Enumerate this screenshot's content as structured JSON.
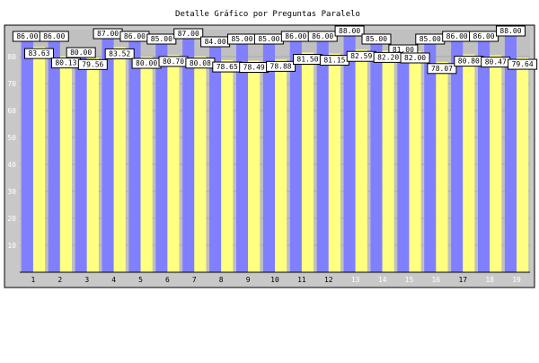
{
  "chart_data": {
    "type": "bar",
    "title": "Detalle Gráfico por Preguntas Paralelo",
    "xlabel": "",
    "ylabel": "",
    "ylim": [
      0,
      90
    ],
    "yticks": [
      10,
      20,
      30,
      40,
      50,
      60,
      70,
      80
    ],
    "grid": true,
    "legend": "none",
    "categories": [
      "1",
      "2",
      "3",
      "4",
      "5",
      "6",
      "7",
      "8",
      "9",
      "10",
      "11",
      "12",
      "13",
      "14",
      "15",
      "16",
      "17",
      "18",
      "19"
    ],
    "series": [
      {
        "color": "#8080ff",
        "values": [
          86.0,
          86.0,
          80.0,
          87.0,
          86.0,
          85.0,
          87.0,
          84.0,
          85.0,
          85.0,
          86.0,
          86.0,
          88.0,
          85.0,
          81.0,
          85.0,
          86.0,
          86.0,
          88.0
        ],
        "labels": [
          "86.00",
          "86.00",
          "80.00",
          "87.00",
          "86.00",
          "85.00",
          "87.00",
          "84.00",
          "85.00",
          "85.00",
          "86.00",
          "86.00",
          "88.00",
          "85.00",
          "81.00",
          "85.00",
          "86.00",
          "86.00",
          "88.00"
        ]
      },
      {
        "color": "#ffff80",
        "values": [
          83.63,
          80.13,
          79.56,
          83.52,
          80.0,
          80.7,
          80.08,
          78.65,
          78.49,
          78.88,
          81.5,
          81.15,
          82.59,
          82.2,
          82.0,
          78.07,
          80.8,
          80.47,
          79.64
        ],
        "labels": [
          "83.63",
          "80.13",
          "79.56",
          "83.52",
          "80.00",
          "80.70",
          "80.08",
          "78.65",
          "78.49",
          "78.88",
          "81.50",
          "81.15",
          "82.59",
          "82.20",
          "82.00",
          "78.07",
          "80.80",
          "80.47",
          "79.64"
        ]
      }
    ]
  },
  "colors": {
    "plot_bg": "#c0c0c0",
    "outer_bg": "#ffffff",
    "gridline": "#a8a8a8"
  }
}
